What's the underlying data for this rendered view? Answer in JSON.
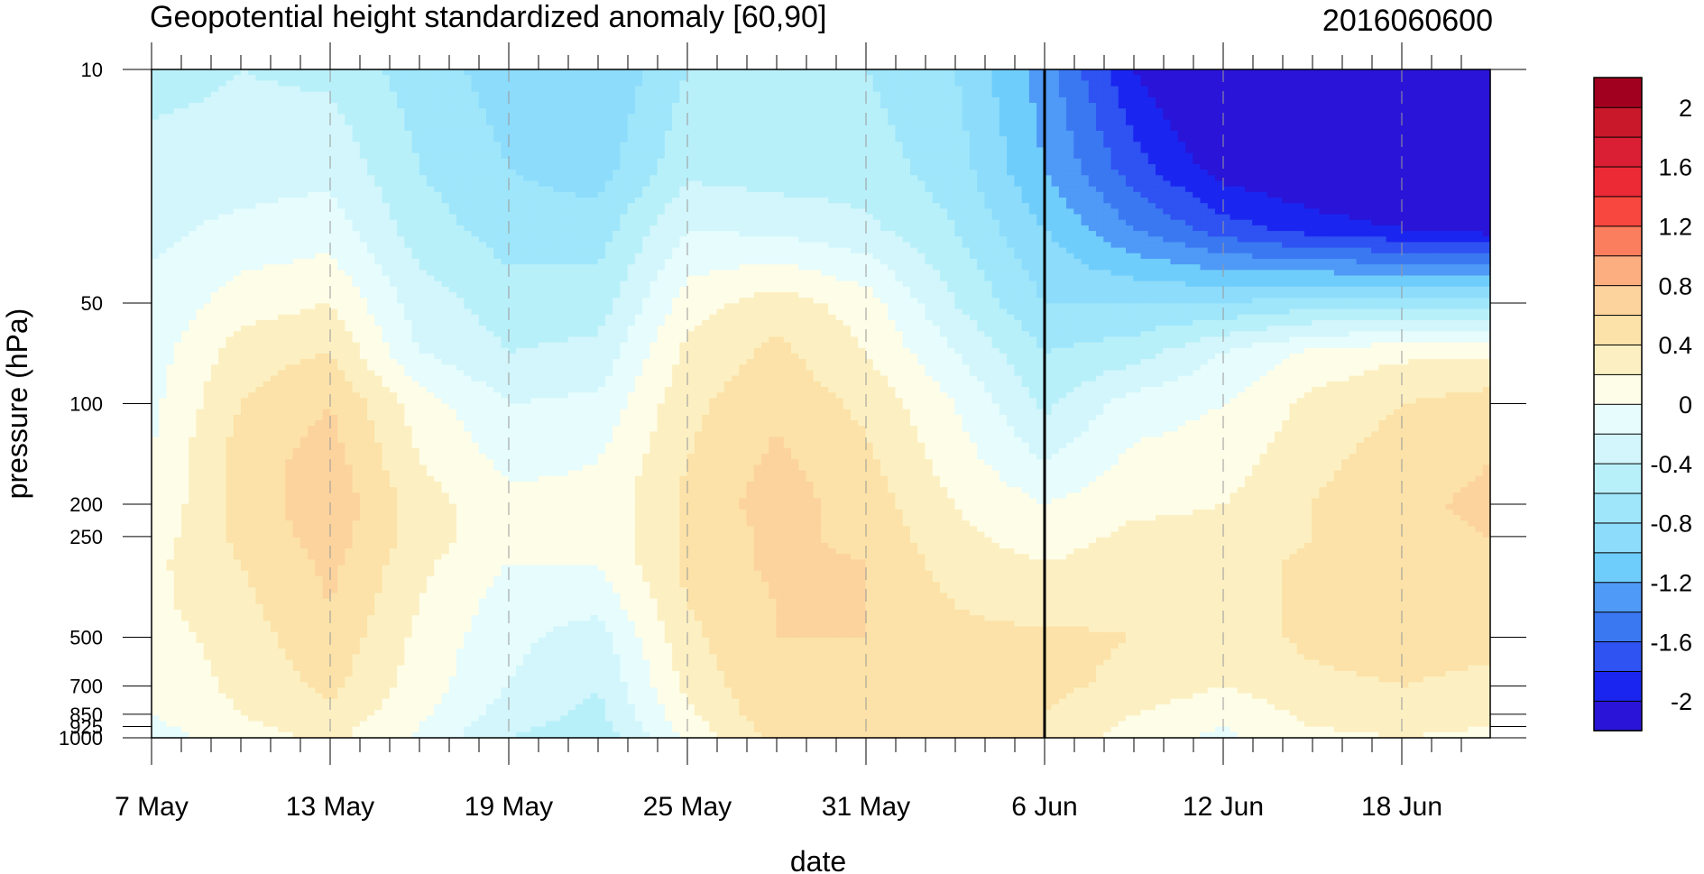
{
  "chart_data": {
    "type": "heatmap",
    "subtype": "filled-contour time-pressure cross-section",
    "title_left": "Geopotential height standardized anomaly [60,90]",
    "title_right": "2016060600",
    "xlabel": "date",
    "ylabel": "pressure (hPa)",
    "x_tick_labels": [
      "7 May",
      "13 May",
      "19 May",
      "25 May",
      "31 May",
      "6 Jun",
      "12 Jun",
      "18 Jun"
    ],
    "x_tick_day_offsets": [
      0,
      6,
      12,
      18,
      24,
      30,
      36,
      42
    ],
    "x_range_days": [
      0,
      45
    ],
    "y_tick_labels": [
      "10",
      "50",
      "100",
      "200",
      "250",
      "500",
      "700",
      "850",
      "925",
      "1000"
    ],
    "y_ticks_hpa": [
      10,
      50,
      100,
      200,
      250,
      500,
      700,
      850,
      925,
      1000
    ],
    "y_scale": "log (inverted)",
    "forecast_start_line": "6 Jun",
    "colorbar": {
      "levels": [
        -2.2,
        -2,
        -1.8,
        -1.6,
        -1.4,
        -1.2,
        -1,
        -0.8,
        -0.6,
        -0.4,
        -0.2,
        0,
        0.2,
        0.4,
        0.6,
        0.8,
        1,
        1.2,
        1.4,
        1.6,
        1.8,
        2,
        2.2
      ],
      "labels": [
        "2",
        "1.6",
        "1.2",
        "0.8",
        "0.4",
        "0",
        "-0.4",
        "-0.8",
        "-1.2",
        "-1.6",
        "-2"
      ],
      "label_values": [
        2,
        1.6,
        1.2,
        0.8,
        0.4,
        0,
        -0.4,
        -0.8,
        -1.2,
        -1.6,
        -2
      ],
      "colors": [
        "#2a14d8",
        "#1a26f0",
        "#2f52f2",
        "#3a78f2",
        "#4f99f7",
        "#6fcdfb",
        "#8ddcfb",
        "#9fe6fb",
        "#b8f0fa",
        "#d2f6fb",
        "#e6fcfd",
        "#fefde8",
        "#fcf0c2",
        "#fce2a8",
        "#fcd29d",
        "#fcae80",
        "#fb7e5e",
        "#f8473e",
        "#ec2a36",
        "#da1e34",
        "#c8182a",
        "#a2001f"
      ]
    },
    "pressure_levels_hpa": [
      10,
      20,
      30,
      50,
      70,
      100,
      150,
      200,
      250,
      300,
      400,
      500,
      700,
      850,
      925,
      1000
    ],
    "days": [
      0,
      3,
      6,
      9,
      12,
      15,
      18,
      21,
      24,
      27,
      30,
      33,
      36,
      39,
      42,
      45
    ],
    "values": [
      [
        -0.5,
        -0.4,
        -0.45,
        -0.7,
        -0.9,
        -1.0,
        -0.6,
        -0.6,
        -0.6,
        -0.8,
        -1.3,
        -2.0,
        -2.4,
        -2.4,
        -2.4,
        -2.4
      ],
      [
        -0.3,
        -0.3,
        -0.25,
        -0.6,
        -0.8,
        -0.9,
        -0.45,
        -0.5,
        -0.5,
        -0.7,
        -1.2,
        -1.7,
        -2.1,
        -2.2,
        -2.3,
        -2.3
      ],
      [
        -0.25,
        -0.15,
        -0.1,
        -0.5,
        -0.7,
        -0.7,
        -0.2,
        -0.25,
        -0.35,
        -0.6,
        -1.0,
        -1.4,
        -1.7,
        -1.9,
        -2.0,
        -2.1
      ],
      [
        -0.15,
        0.1,
        0.2,
        -0.3,
        -0.5,
        -0.5,
        0.1,
        0.3,
        0.1,
        -0.4,
        -0.8,
        -0.8,
        -0.8,
        -0.7,
        -0.7,
        -0.7
      ],
      [
        -0.1,
        0.3,
        0.4,
        -0.2,
        -0.4,
        -0.35,
        0.25,
        0.45,
        0.2,
        -0.2,
        -0.6,
        -0.5,
        -0.2,
        0.05,
        0.15,
        0.15
      ],
      [
        -0.05,
        0.4,
        0.6,
        0.1,
        -0.2,
        -0.15,
        0.35,
        0.55,
        0.35,
        0.0,
        -0.45,
        -0.1,
        0.0,
        0.25,
        0.4,
        0.5
      ],
      [
        0.0,
        0.5,
        0.7,
        0.2,
        -0.05,
        0.0,
        0.4,
        0.65,
        0.45,
        0.1,
        -0.2,
        0.05,
        0.1,
        0.35,
        0.5,
        0.6
      ],
      [
        0.05,
        0.45,
        0.75,
        0.3,
        0.05,
        0.05,
        0.45,
        0.7,
        0.5,
        0.2,
        0.0,
        0.15,
        0.2,
        0.4,
        0.55,
        0.65
      ],
      [
        0.1,
        0.45,
        0.7,
        0.3,
        0.05,
        0.05,
        0.45,
        0.65,
        0.55,
        0.25,
        0.1,
        0.25,
        0.25,
        0.4,
        0.55,
        0.6
      ],
      [
        0.15,
        0.4,
        0.65,
        0.25,
        0.0,
        0.0,
        0.45,
        0.65,
        0.6,
        0.3,
        0.2,
        0.3,
        0.3,
        0.45,
        0.55,
        0.55
      ],
      [
        0.15,
        0.35,
        0.6,
        0.2,
        -0.1,
        -0.15,
        0.4,
        0.6,
        0.6,
        0.4,
        0.3,
        0.35,
        0.3,
        0.45,
        0.55,
        0.5
      ],
      [
        0.1,
        0.3,
        0.55,
        0.15,
        -0.15,
        -0.3,
        0.35,
        0.6,
        0.6,
        0.45,
        0.45,
        0.4,
        0.3,
        0.45,
        0.5,
        0.45
      ],
      [
        0.05,
        0.25,
        0.45,
        0.1,
        -0.2,
        -0.4,
        0.25,
        0.6,
        0.55,
        0.45,
        0.45,
        0.35,
        0.2,
        0.35,
        0.4,
        0.35
      ],
      [
        0.0,
        0.2,
        0.35,
        0.05,
        -0.3,
        -0.45,
        0.15,
        0.55,
        0.5,
        0.45,
        0.4,
        0.2,
        0.05,
        0.25,
        0.3,
        0.25
      ],
      [
        -0.05,
        0.15,
        0.3,
        0.0,
        -0.35,
        -0.5,
        0.1,
        0.5,
        0.45,
        0.4,
        0.4,
        0.15,
        0.0,
        0.2,
        0.25,
        0.2
      ],
      [
        -0.1,
        0.1,
        0.25,
        -0.05,
        -0.4,
        -0.55,
        0.05,
        0.45,
        0.45,
        0.4,
        0.4,
        0.1,
        -0.05,
        0.15,
        0.2,
        0.15
      ]
    ]
  }
}
